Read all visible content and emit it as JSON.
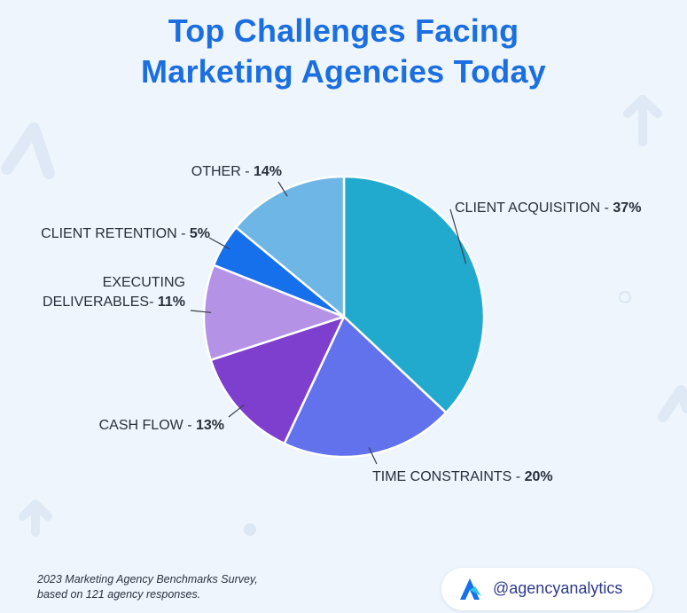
{
  "title_lines": [
    "Top Challenges Facing",
    "Marketing Agencies Today"
  ],
  "chart_data": {
    "type": "pie",
    "title": "Top Challenges Facing Marketing Agencies Today",
    "unit": "%",
    "slices": [
      {
        "label": "CLIENT ACQUISITION",
        "separator": " - ",
        "value": 37,
        "color": "#22aace"
      },
      {
        "label": "TIME CONSTRAINTS",
        "separator": " - ",
        "value": 20,
        "color": "#6172ec"
      },
      {
        "label": "CASH FLOW",
        "separator": " - ",
        "value": 13,
        "color": "#7e3fce"
      },
      {
        "label": "EXECUTING DELIVERABLES",
        "label_lines": [
          "EXECUTING",
          "DELIVERABLES"
        ],
        "separator": "- ",
        "value": 11,
        "color": "#b493e6"
      },
      {
        "label": "CLIENT RETENTION",
        "separator": " - ",
        "value": 5,
        "color": "#1670ec"
      },
      {
        "label": "OTHER",
        "separator": " - ",
        "value": 14,
        "color": "#6db6e6"
      }
    ],
    "start": "top",
    "direction": "clockwise"
  },
  "footer": {
    "source_lines": [
      "2023 Marketing Agency Benchmarks Survey,",
      "based on 121 agency responses."
    ],
    "brand_handle": "@agencyanalytics"
  },
  "colors": {
    "title": "#1b6fe0",
    "background": "#eef5fc",
    "brand_text": "#2e3a8c"
  },
  "icons": {
    "brand_logo": "agencyanalytics-logo-icon"
  }
}
